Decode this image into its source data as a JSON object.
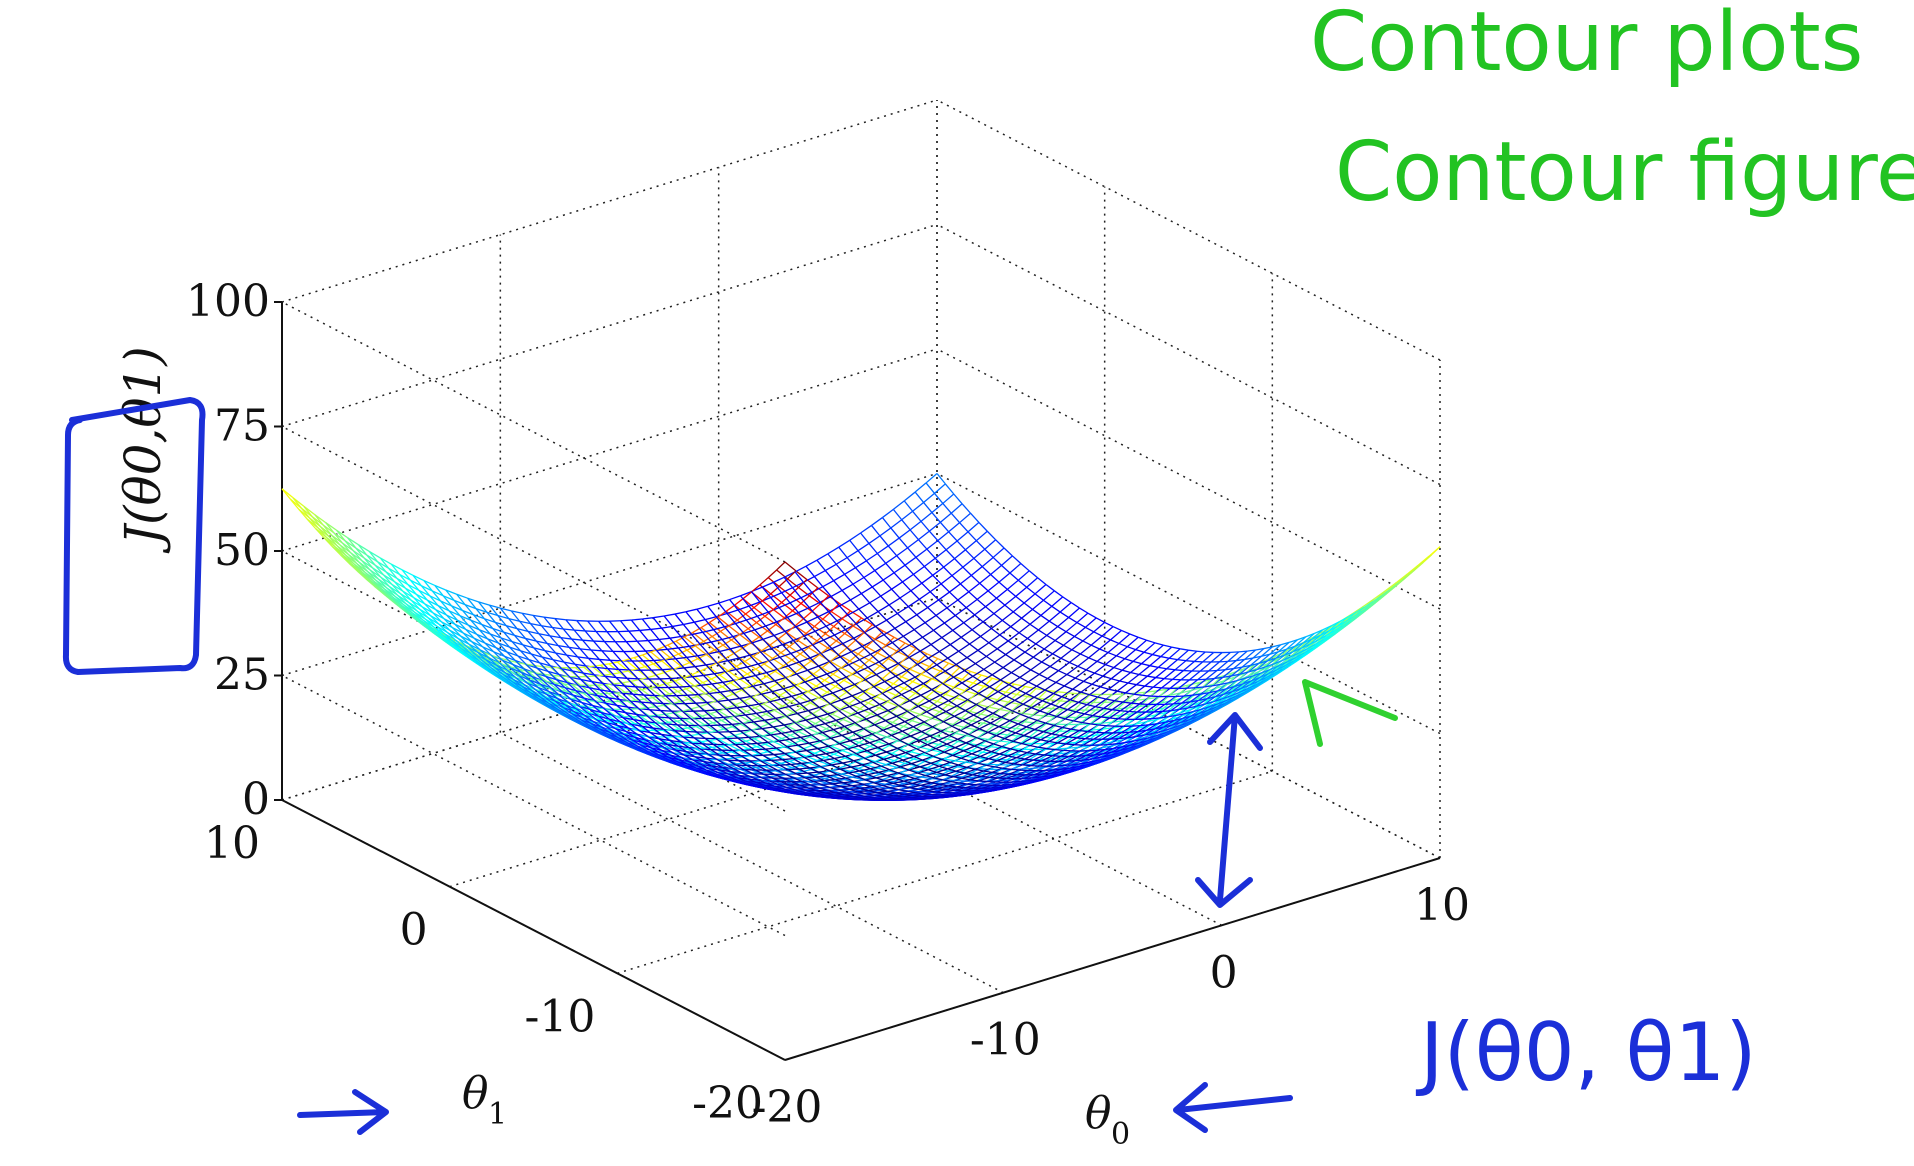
{
  "chart_data": {
    "type": "surface-mesh",
    "title": "",
    "function": "J(theta0, theta1) = 0.2 * (theta0^2 + theta1^2)",
    "x": {
      "label_base": "θ",
      "label_sub": "0",
      "range": [
        -20,
        10
      ],
      "ticks": [
        -20,
        -10,
        0,
        10
      ],
      "tick_labels": [
        "-20",
        "-10",
        "0",
        "10"
      ]
    },
    "y": {
      "label_base": "θ",
      "label_sub": "1",
      "range": [
        -20,
        10
      ],
      "ticks": [
        -20,
        -10,
        0,
        10
      ],
      "tick_labels": [
        "-20",
        "-10",
        "0",
        "10"
      ]
    },
    "z": {
      "label": "J(θ0,θ1)",
      "range": [
        0,
        100
      ],
      "ticks": [
        0,
        25,
        50,
        75,
        100
      ],
      "tick_labels": [
        "0",
        "25",
        "50",
        "75",
        "100"
      ]
    },
    "colormap": "jet",
    "mesh_resolution": 60,
    "grid": true
  },
  "annotations": {
    "green_line_1": "Contour plots",
    "green_line_2": "Contour figures -",
    "blue_formula": "J(θ0, θ1)"
  },
  "colors": {
    "green_ink": "#22c322",
    "blue_ink": "#1b2fd8"
  }
}
